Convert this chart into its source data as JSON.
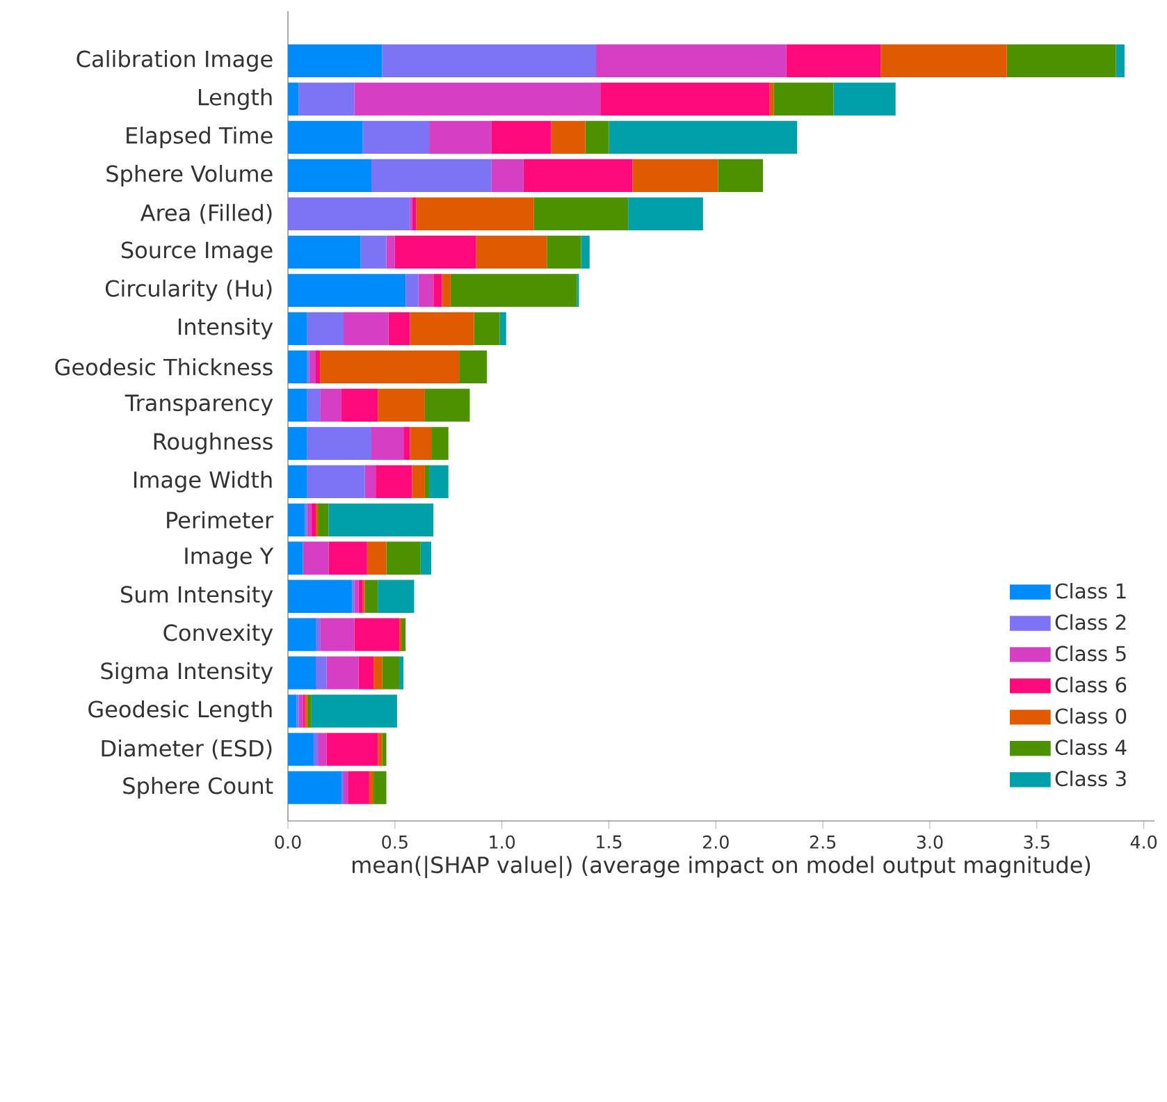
{
  "chart_data": {
    "type": "bar",
    "orientation": "horizontal",
    "stacked": true,
    "xlabel": "mean(|SHAP value|) (average impact on model output magnitude)",
    "categories": [
      "Calibration Image",
      "Length",
      "Elapsed Time",
      "Sphere Volume",
      "Area (Filled)",
      "Source Image",
      "Circularity (Hu)",
      "Intensity",
      "Geodesic Thickness",
      "Transparency",
      "Roughness",
      "Image Width",
      "Perimeter",
      "Image Y",
      "Sum Intensity",
      "Convexity",
      "Sigma Intensity",
      "Geodesic Length",
      "Diameter (ESD)",
      "Sphere Count"
    ],
    "series": [
      {
        "name": "Class 1",
        "color": "#008bfb",
        "values": [
          0.44,
          0.05,
          0.35,
          0.39,
          0,
          0.34,
          0.55,
          0.09,
          0.09,
          0.09,
          0.09,
          0.09,
          0.08,
          0.07,
          0.3,
          0.13,
          0.13,
          0.04,
          0.12,
          0.25
        ]
      },
      {
        "name": "Class 2",
        "color": "#7c73f5",
        "values": [
          1.0,
          0.26,
          0.31,
          0.56,
          0.57,
          0.12,
          0.06,
          0.17,
          0.01,
          0.06,
          0.3,
          0.27,
          0.01,
          0,
          0.01,
          0.02,
          0.05,
          0.01,
          0.02,
          0.01
        ]
      },
      {
        "name": "Class 5",
        "color": "#d63ec4",
        "values": [
          0.89,
          1.15,
          0.29,
          0.15,
          0.01,
          0.04,
          0.07,
          0.21,
          0.03,
          0.1,
          0.15,
          0.05,
          0.02,
          0.12,
          0.02,
          0.16,
          0.15,
          0.02,
          0.04,
          0.02
        ]
      },
      {
        "name": "Class 6",
        "color": "#ff0a7c",
        "values": [
          0.44,
          0.79,
          0.28,
          0.51,
          0.02,
          0.38,
          0.04,
          0.1,
          0.02,
          0.17,
          0.03,
          0.17,
          0.02,
          0.18,
          0.02,
          0.21,
          0.07,
          0.01,
          0.24,
          0.1
        ]
      },
      {
        "name": "Class 0",
        "color": "#e05a00",
        "values": [
          0.59,
          0.02,
          0.16,
          0.4,
          0.55,
          0.33,
          0.04,
          0.3,
          0.65,
          0.22,
          0.1,
          0.06,
          0.01,
          0.09,
          0.01,
          0.01,
          0.04,
          0.01,
          0.02,
          0.02
        ]
      },
      {
        "name": "Class 4",
        "color": "#4c9100",
        "values": [
          0.51,
          0.28,
          0.11,
          0.21,
          0.44,
          0.16,
          0.59,
          0.12,
          0.13,
          0.21,
          0.08,
          0.02,
          0.05,
          0.16,
          0.06,
          0.02,
          0.08,
          0.02,
          0.02,
          0.06
        ]
      },
      {
        "name": "Class 3",
        "color": "#00a0a8",
        "values": [
          0.04,
          0.29,
          0.88,
          0,
          0.35,
          0.04,
          0.01,
          0.03,
          0,
          0,
          0,
          0.09,
          0.49,
          0.05,
          0.17,
          0,
          0.02,
          0.4,
          0,
          0
        ]
      }
    ],
    "xlim": [
      0,
      4.05
    ],
    "xticks": [
      {
        "value": 0,
        "label": "0.0"
      },
      {
        "value": 0.5,
        "label": "0.5"
      },
      {
        "value": 1,
        "label": "1.0"
      },
      {
        "value": 1.5,
        "label": "1.5"
      },
      {
        "value": 2,
        "label": "2.0"
      },
      {
        "value": 2.5,
        "label": "2.5"
      },
      {
        "value": 3,
        "label": "3.0"
      },
      {
        "value": 3.5,
        "label": "3.5"
      },
      {
        "value": 4,
        "label": "4.0"
      }
    ],
    "legend": "bottom right",
    "grid": false
  }
}
